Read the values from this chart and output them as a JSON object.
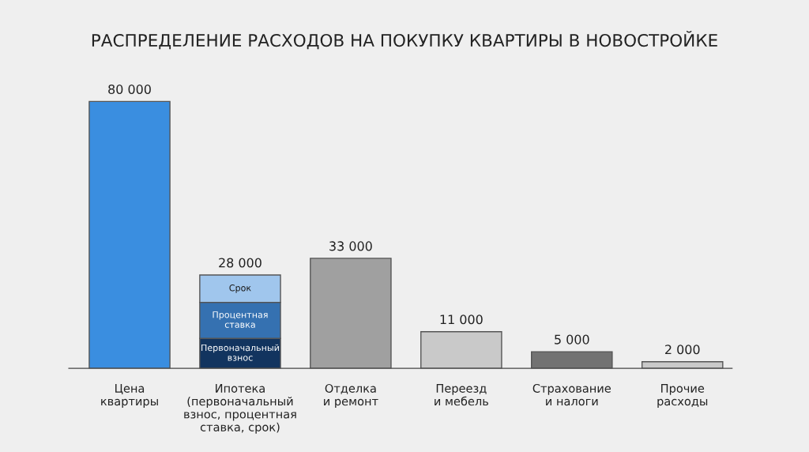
{
  "chart_data": {
    "type": "bar",
    "title": "РАСПРЕДЕЛЕНИЕ РАСХОДОВ НА ПОКУПКУ КВАРТИРЫ В НОВОСТРОЙКЕ",
    "categories": [
      "Цена\nквартиры",
      "Ипотека\n(первоначальный\nвзнос, процентная\nставка, срок)",
      "Отделка\nи ремонт",
      "Переезд\nи мебель",
      "Страхование\nи налоги",
      "Прочие\nрасходы"
    ],
    "stacked": true,
    "series": [
      {
        "colors": [
          "#3a8ee0",
          "#3a8ee0",
          "#a0a0a0",
          "#c9c9c9",
          "#727272",
          "#c9c9c9"
        ],
        "values": [
          80000,
          null,
          33000,
          11000,
          5000,
          2000
        ],
        "value_labels": [
          "80 000",
          null,
          "33 000",
          "11 000",
          "5 000",
          "2 000"
        ]
      },
      {
        "name": "Первоначальный\nвзнос",
        "color": "#12345f",
        "values": [
          null,
          9000,
          null,
          null,
          null,
          null
        ]
      },
      {
        "name": "Процентная\nставка",
        "color": "#3571b1",
        "values": [
          null,
          10800,
          null,
          null,
          null,
          null
        ]
      },
      {
        "name": "Срок",
        "color": "#a0c6ed",
        "values": [
          null,
          8200,
          null,
          null,
          null,
          null
        ]
      }
    ],
    "totals": [
      null,
      "28 000",
      null,
      null,
      null,
      null
    ],
    "grid": false,
    "legend": false
  }
}
